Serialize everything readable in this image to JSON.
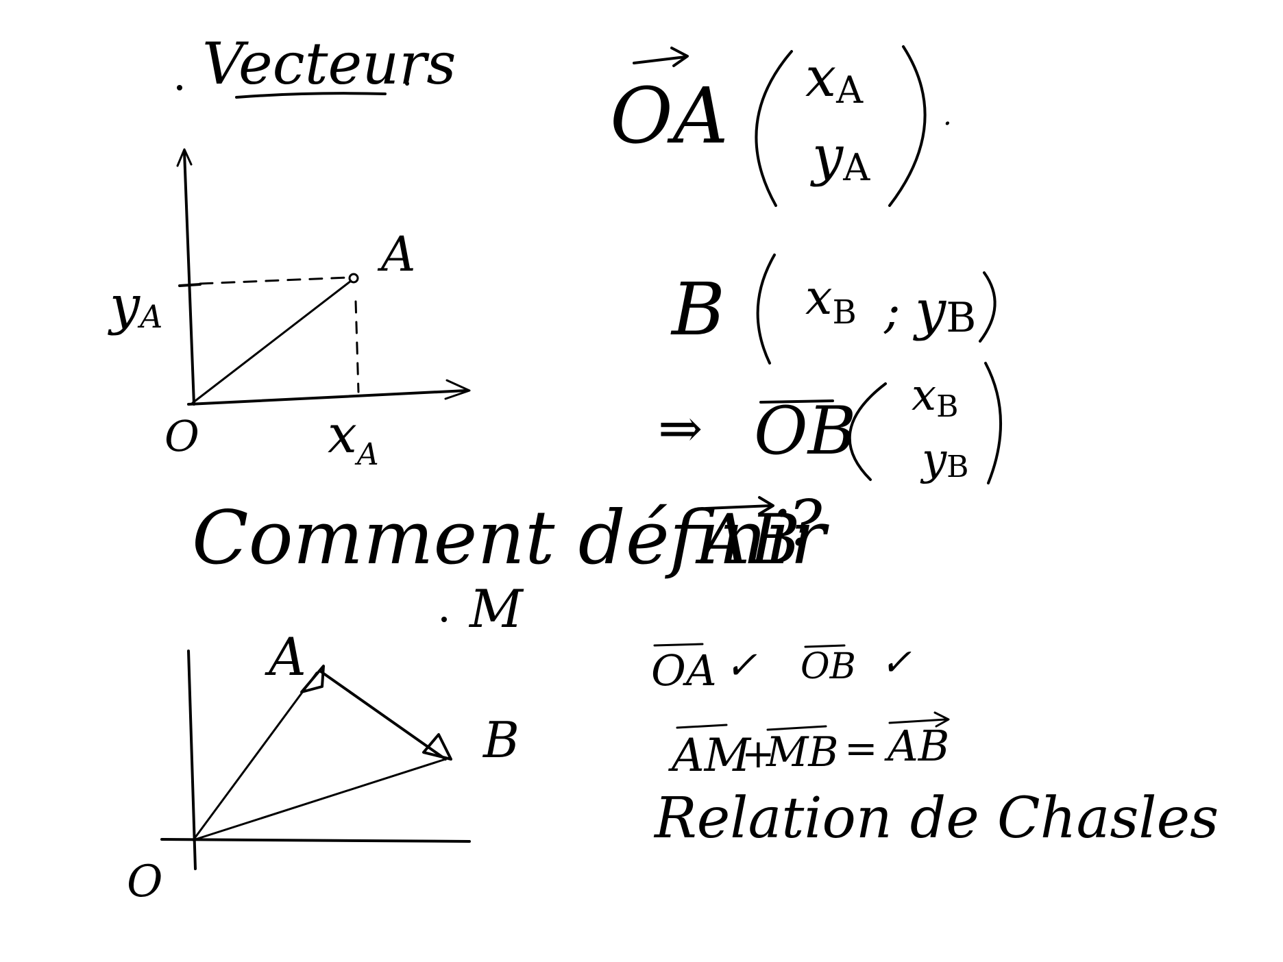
{
  "colors": {
    "ink": "#000000",
    "background": "#ffffff"
  },
  "title": "Vecteurs",
  "figure1": {
    "y_label": "y",
    "y_sub": "A",
    "point": "A",
    "origin": "O",
    "x_label": "x",
    "x_sub": "A"
  },
  "vector_oa": {
    "name": "OA",
    "x": "x",
    "x_sub": "A",
    "y": "y",
    "y_sub": "A",
    "trailing": "."
  },
  "point_b": {
    "name": "B",
    "x": "x",
    "x_sub": "B",
    "separator": ";",
    "y": "y",
    "y_sub": "B"
  },
  "vector_ob": {
    "implies": "⇒",
    "name": "OB",
    "x": "x",
    "x_sub": "B",
    "y": "y",
    "y_sub": "B"
  },
  "question": {
    "text": "Comment définir",
    "vector": "AB",
    "mark": "?"
  },
  "figure2": {
    "point_m": "M",
    "point_a": "A",
    "point_b": "B",
    "origin": "O"
  },
  "checks": {
    "vec1": "OA",
    "check1": "✓",
    "vec2": "OB",
    "check2": "✓"
  },
  "chasles": {
    "vec_am": "AM",
    "plus": "+",
    "vec_mb": "MB",
    "equals": "=",
    "vec_ab": "AB",
    "caption": "Relation de Chasles"
  }
}
